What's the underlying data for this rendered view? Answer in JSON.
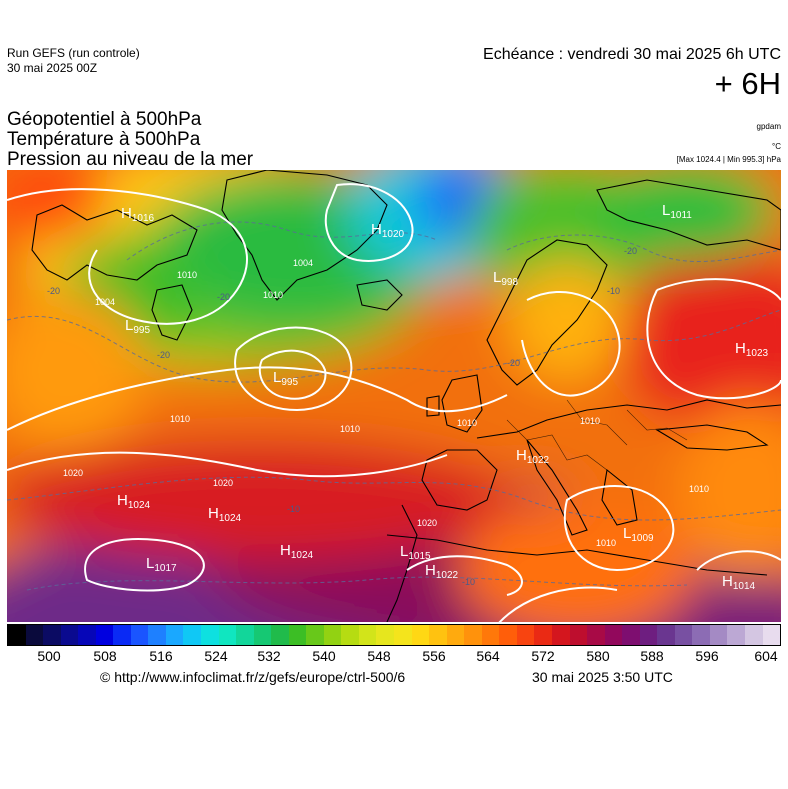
{
  "header": {
    "run": "Run GEFS (run controle)",
    "run_date": "30 mai 2025 00Z",
    "echeance": "Echéance : vendredi 30 mai 2025 6h UTC",
    "step": "+ 6H"
  },
  "titles": {
    "line1": "Géopotentiel à 500hPa",
    "line2": "Température à 500hPa",
    "line3": "Pression au niveau de la mer"
  },
  "units": {
    "geopot": "gpdam",
    "temp": "°C",
    "pressure": "[Max 1024.4 | Min 995.3] hPa"
  },
  "pressure_centers": [
    {
      "type": "H",
      "value": "1016"
    },
    {
      "type": "H",
      "value": "1020"
    },
    {
      "type": "L",
      "value": "998"
    },
    {
      "type": "L",
      "value": "1011"
    },
    {
      "type": "L",
      "value": "995"
    },
    {
      "type": "L",
      "value": "995"
    },
    {
      "type": "H",
      "value": "1023"
    },
    {
      "type": "H",
      "value": "1022"
    },
    {
      "type": "H",
      "value": "1024"
    },
    {
      "type": "H",
      "value": "1024"
    },
    {
      "type": "H",
      "value": "1024"
    },
    {
      "type": "L",
      "value": "1017"
    },
    {
      "type": "L",
      "value": "1015"
    },
    {
      "type": "H",
      "value": "1022"
    },
    {
      "type": "L",
      "value": "1009"
    },
    {
      "type": "H",
      "value": "1014"
    }
  ],
  "isobar_labels": [
    "1004",
    "1010",
    "1004",
    "1010",
    "1010",
    "1010",
    "1020",
    "1020",
    "1020",
    "1010",
    "1010",
    "1010",
    "1010"
  ],
  "isotherm_labels": [
    "-20",
    "-20",
    "-20",
    "-20",
    "-10",
    "-10",
    "-20",
    "-10"
  ],
  "colorbar": {
    "tick_labels": [
      "500",
      "508",
      "516",
      "524",
      "532",
      "540",
      "548",
      "556",
      "564",
      "572",
      "580",
      "588",
      "596",
      "604"
    ],
    "colors": [
      "#000000",
      "#0a0a3c",
      "#0b0b63",
      "#0a0a8f",
      "#0606b8",
      "#0000e0",
      "#0a2af5",
      "#1a55ff",
      "#1e80ff",
      "#1aa8ff",
      "#10c8f5",
      "#0ee0e0",
      "#10e6c0",
      "#12d69a",
      "#16c873",
      "#20bb4b",
      "#3cbe25",
      "#68c81a",
      "#92d212",
      "#b6dc12",
      "#d2e41a",
      "#e6e61e",
      "#f4e41c",
      "#ffd814",
      "#ffc210",
      "#ffaa0e",
      "#ff920c",
      "#ff780a",
      "#ff5e0a",
      "#f84410",
      "#ea2a14",
      "#d4161e",
      "#be0e2e",
      "#a80a46",
      "#92085c",
      "#7e0e70",
      "#6e1e80",
      "#6a3690",
      "#7850a2",
      "#8c6cb4",
      "#a48ac4",
      "#bca8d4",
      "#d4c6e2",
      "#e8dcee"
    ]
  },
  "footer": {
    "url": "© http://www.infoclimat.fr/z/gefs/europe/ctrl-500/6",
    "timestamp": "30 mai 2025  3:50 UTC"
  }
}
